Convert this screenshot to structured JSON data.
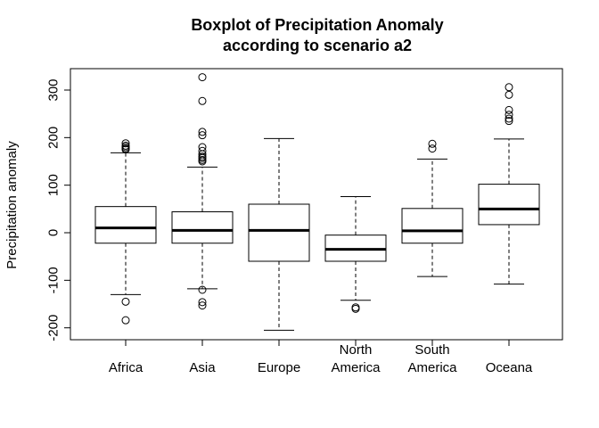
{
  "chart_data": {
    "type": "boxplot",
    "title": [
      "Boxplot of Precipitation Anomaly",
      "according to scenario a2"
    ],
    "ylabel": "Precipitation anomaly",
    "xlabel": "",
    "ylim": [
      -225,
      345
    ],
    "yticks": [
      -200,
      -100,
      0,
      100,
      200,
      300
    ],
    "yticklabels": [
      "-200",
      "-100",
      "0",
      "100",
      "200",
      "300"
    ],
    "grid": false,
    "categories": [
      [
        "Africa"
      ],
      [
        "Asia"
      ],
      [
        "Europe"
      ],
      [
        "North",
        "America"
      ],
      [
        "South",
        "America"
      ],
      [
        "Oceana"
      ]
    ],
    "boxes": [
      {
        "whisker_low": -130,
        "q1": -22,
        "median": 10,
        "q3": 55,
        "whisker_high": 168,
        "outliers": [
          175,
          177,
          180,
          183,
          188,
          -145,
          -184
        ]
      },
      {
        "whisker_low": -118,
        "q1": -22,
        "median": 5,
        "q3": 44,
        "whisker_high": 138,
        "outliers": [
          150,
          153,
          157,
          160,
          165,
          172,
          180,
          205,
          212,
          277,
          327,
          -120,
          -146,
          -153
        ]
      },
      {
        "whisker_low": -205,
        "q1": -60,
        "median": 5,
        "q3": 60,
        "whisker_high": 198,
        "outliers": []
      },
      {
        "whisker_low": -142,
        "q1": -60,
        "median": -35,
        "q3": -5,
        "whisker_high": 76,
        "outliers": [
          -157,
          -160
        ]
      },
      {
        "whisker_low": -92,
        "q1": -22,
        "median": 4,
        "q3": 51,
        "whisker_high": 155,
        "outliers": [
          177,
          187
        ]
      },
      {
        "whisker_low": -108,
        "q1": 17,
        "median": 50,
        "q3": 102,
        "whisker_high": 197,
        "outliers": [
          235,
          240,
          248,
          258,
          290,
          306
        ]
      }
    ]
  }
}
